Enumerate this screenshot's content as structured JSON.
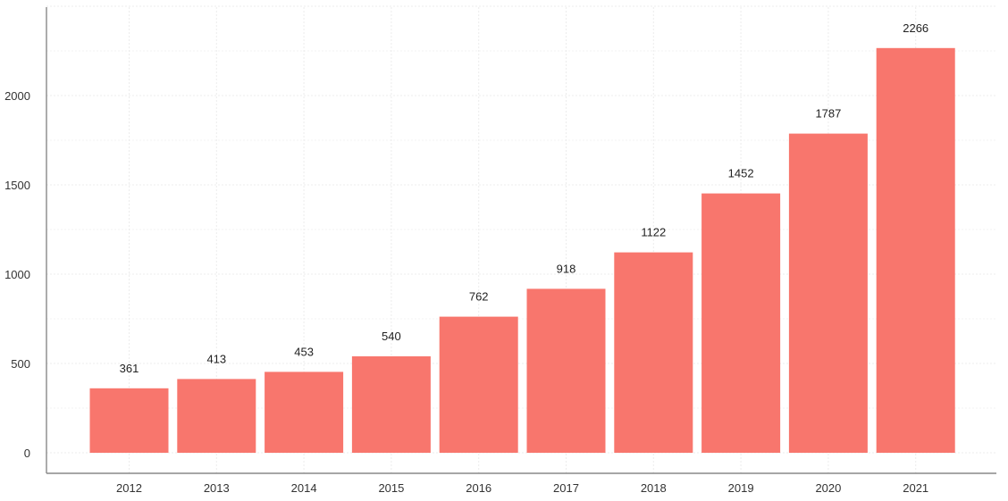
{
  "chart_data": {
    "type": "bar",
    "title": "",
    "xlabel": "",
    "ylabel": "",
    "categories": [
      "2012",
      "2013",
      "2014",
      "2015",
      "2016",
      "2017",
      "2018",
      "2019",
      "2020",
      "2021"
    ],
    "values": [
      361,
      413,
      453,
      540,
      762,
      918,
      1122,
      1452,
      1787,
      2266
    ],
    "ylim": [
      0,
      2500
    ],
    "yticks": [
      0,
      500,
      1000,
      1500,
      2000
    ],
    "grid": true,
    "data_labels": true,
    "legend": "none",
    "colors": {
      "bar": "#F8766D"
    }
  }
}
